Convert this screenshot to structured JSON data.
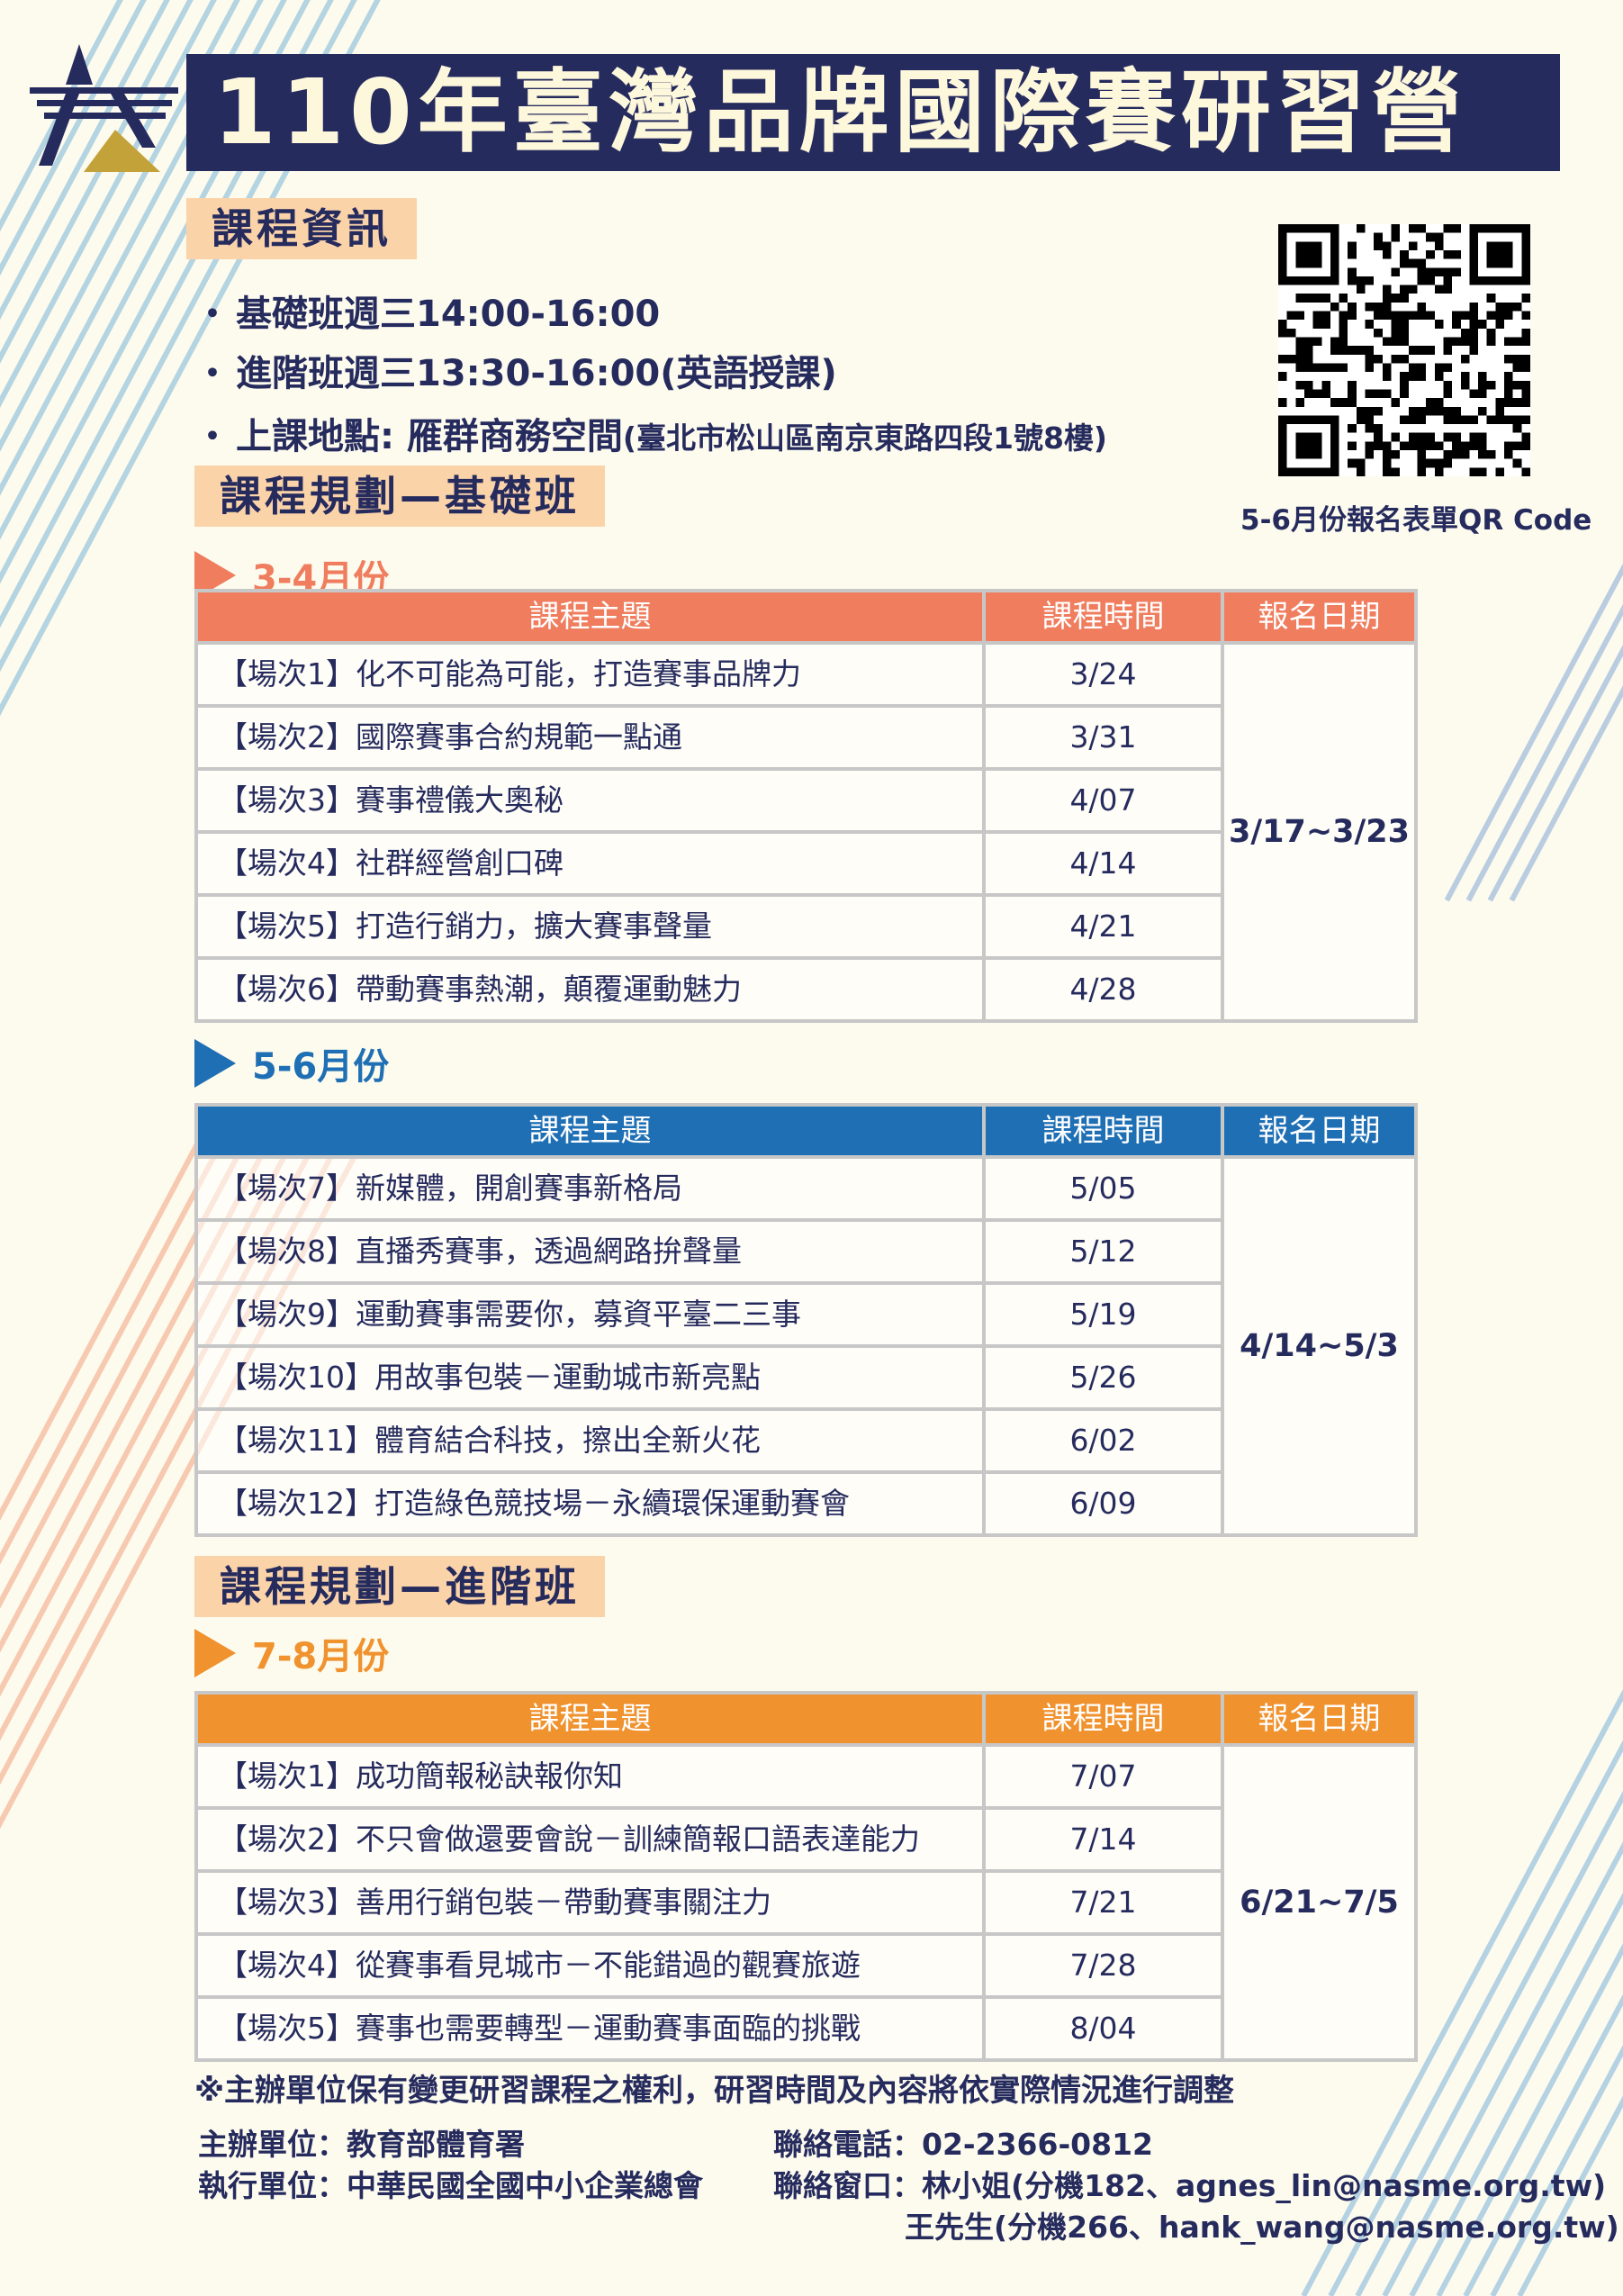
{
  "title": "110年臺灣品牌國際賽研習營",
  "course_info": {
    "heading": "課程資訊",
    "bullets": [
      {
        "main": "基礎班週三14:00-16:00",
        "extra": ""
      },
      {
        "main": "進階班週三13:30-16:00",
        "extra": "(英語授課)"
      },
      {
        "main": "上課地點: 雁群商務空間",
        "extra": "(臺北市松山區南京東路四段1號8樓)"
      }
    ],
    "bullet_glyph": "・"
  },
  "qr": {
    "caption": "5-6月份報名表單QR Code"
  },
  "basic": {
    "heading": "課程規劃—基礎班"
  },
  "advanced": {
    "heading": "課程規劃—進階班"
  },
  "table_headers": [
    "課程主題",
    "課程時間",
    "報名日期"
  ],
  "tables": [
    {
      "month": "3-4月份",
      "color": "#ef7d5e",
      "registration": "3/17~3/23",
      "rows": [
        [
          "【場次1】化不可能為可能，打造賽事品牌力",
          "3/24"
        ],
        [
          "【場次2】國際賽事合約規範一點通",
          "3/31"
        ],
        [
          "【場次3】賽事禮儀大奧秘",
          "4/07"
        ],
        [
          "【場次4】社群經營創口碑",
          "4/14"
        ],
        [
          "【場次5】打造行銷力，擴大賽事聲量",
          "4/21"
        ],
        [
          "【場次6】帶動賽事熱潮，顛覆運動魅力",
          "4/28"
        ]
      ]
    },
    {
      "month": "5-6月份",
      "color": "#1f6fb5",
      "registration": "4/14~5/3",
      "rows": [
        [
          "【場次7】新媒體，開創賽事新格局",
          "5/05"
        ],
        [
          "【場次8】直播秀賽事，透過網路拚聲量",
          "5/12"
        ],
        [
          "【場次9】運動賽事需要你，募資平臺二三事",
          "5/19"
        ],
        [
          "【場次10】用故事包裝－運動城市新亮點",
          "5/26"
        ],
        [
          "【場次11】體育結合科技，擦出全新火花",
          "6/02"
        ],
        [
          "【場次12】打造綠色競技場－永續環保運動賽會",
          "6/09"
        ]
      ]
    },
    {
      "month": "7-8月份",
      "color": "#f0922e",
      "registration": "6/21~7/5",
      "rows": [
        [
          "【場次1】成功簡報秘訣報你知",
          "7/07"
        ],
        [
          "【場次2】不只會做還要會說－訓練簡報口語表達能力",
          "7/14"
        ],
        [
          "【場次3】善用行銷包裝－帶動賽事關注力",
          "7/21"
        ],
        [
          "【場次4】從賽事看見城市－不能錯過的觀賽旅遊",
          "7/28"
        ],
        [
          "【場次5】賽事也需要轉型－運動賽事面臨的挑戰",
          "8/04"
        ]
      ]
    }
  ],
  "note": "※主辦單位保有變更研習課程之權利，研習時間及內容將依實際情況進行調整",
  "footer": {
    "organizer": "主辦單位：教育部體育署",
    "executor": "執行單位：中華民國全國中小企業總會",
    "phone": "聯絡電話：02-2366-0812",
    "contact1": "聯絡窗口：林小姐(分機182、agnes_lin@nasme.org.tw)",
    "contact2": "王先生(分機266、hank_wang@nasme.org.tw)"
  },
  "colors": {
    "navy": "#262b5e",
    "label_bg": "#fbd3a8",
    "background": "#fdfbee",
    "logo_gold": "#c3a23a"
  }
}
